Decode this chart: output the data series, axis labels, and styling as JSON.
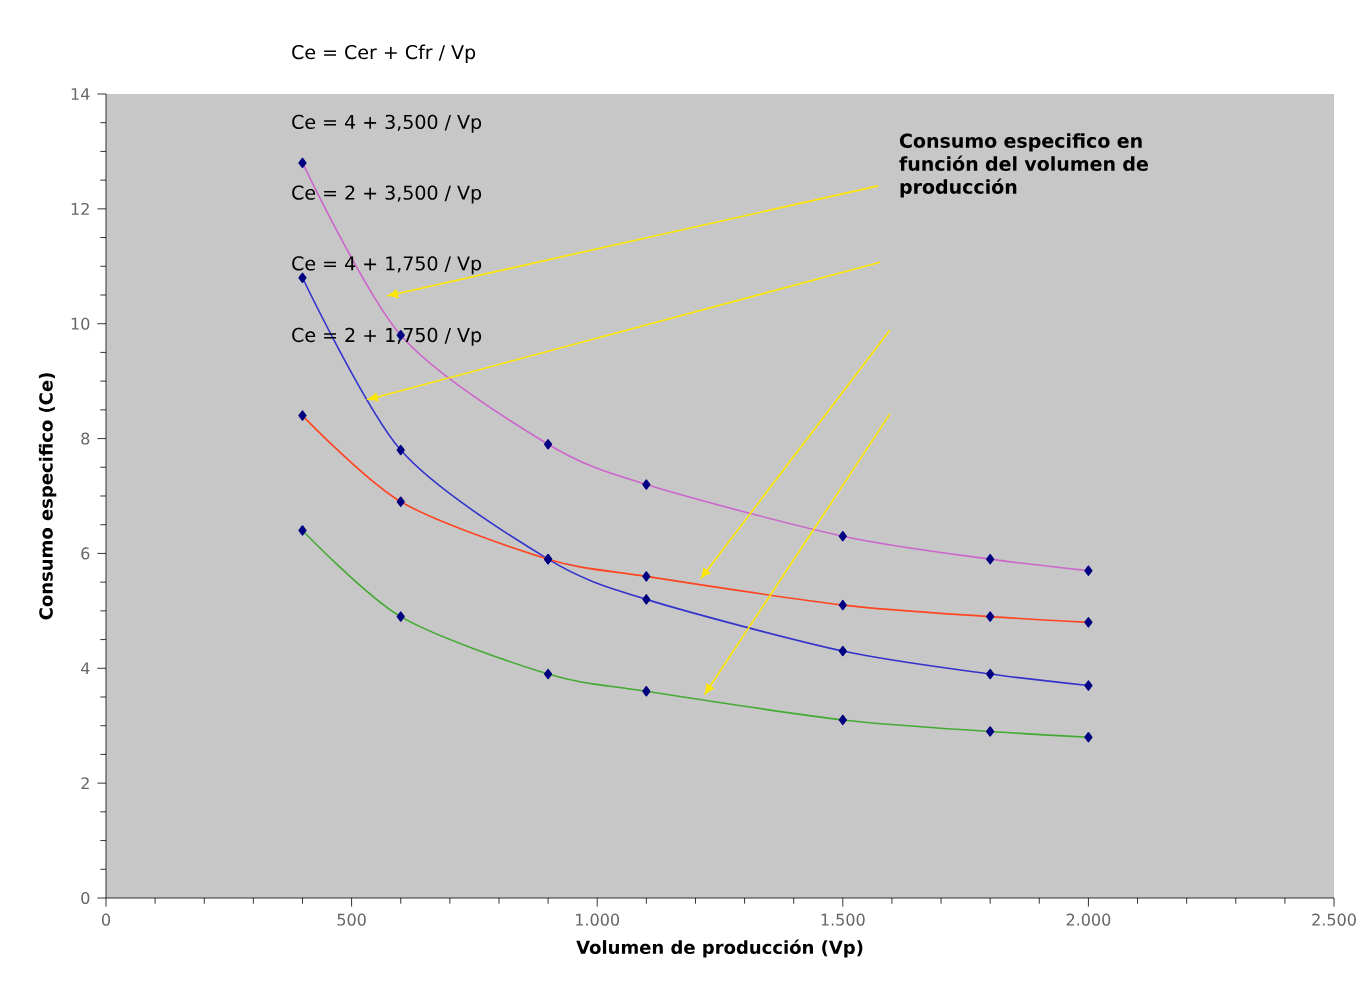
{
  "chart_data": {
    "type": "line",
    "xlabel": "Volumen de producción (Vp)",
    "ylabel": "Consumo especifico (Ce)",
    "x": [
      400,
      600,
      900,
      1100,
      1500,
      1800,
      2000
    ],
    "series": [
      {
        "color": "#cc66cc",
        "values": [
          12.8,
          9.8,
          7.9,
          7.2,
          6.3,
          5.9,
          5.7
        ]
      },
      {
        "color": "#3333cc",
        "values": [
          10.8,
          7.8,
          5.9,
          5.2,
          4.3,
          3.9,
          3.7
        ]
      },
      {
        "color": "#ff4422",
        "values": [
          8.4,
          6.9,
          5.9,
          5.6,
          5.1,
          4.9,
          4.8
        ]
      },
      {
        "color": "#44aa33",
        "values": [
          6.4,
          4.9,
          3.9,
          3.6,
          3.1,
          2.9,
          2.8
        ]
      }
    ],
    "xlim": [
      0,
      2500
    ],
    "ylim": [
      0,
      14
    ],
    "xticks": [
      0,
      500,
      {
        "value": 1000,
        "label": "1.000"
      },
      {
        "value": 1500,
        "label": "1.500"
      },
      {
        "value": 2000,
        "label": "2.000"
      },
      {
        "value": 2500,
        "label": "2.500"
      }
    ],
    "yticks": [
      0,
      2,
      4,
      6,
      8,
      10,
      12,
      14
    ],
    "marker": "diamond",
    "grid": false,
    "annotations": [
      "Ce  = Cer  +   Cfr / Vp",
      "Ce  =   4   +  3,500 / Vp",
      "Ce  =   2   +  3,500 / Vp",
      "Ce  =   4   +  1,750 / Vp",
      "Ce  =   2   +  1,750 / Vp",
      "Consumo especifico en función del volumen de producción"
    ]
  }
}
